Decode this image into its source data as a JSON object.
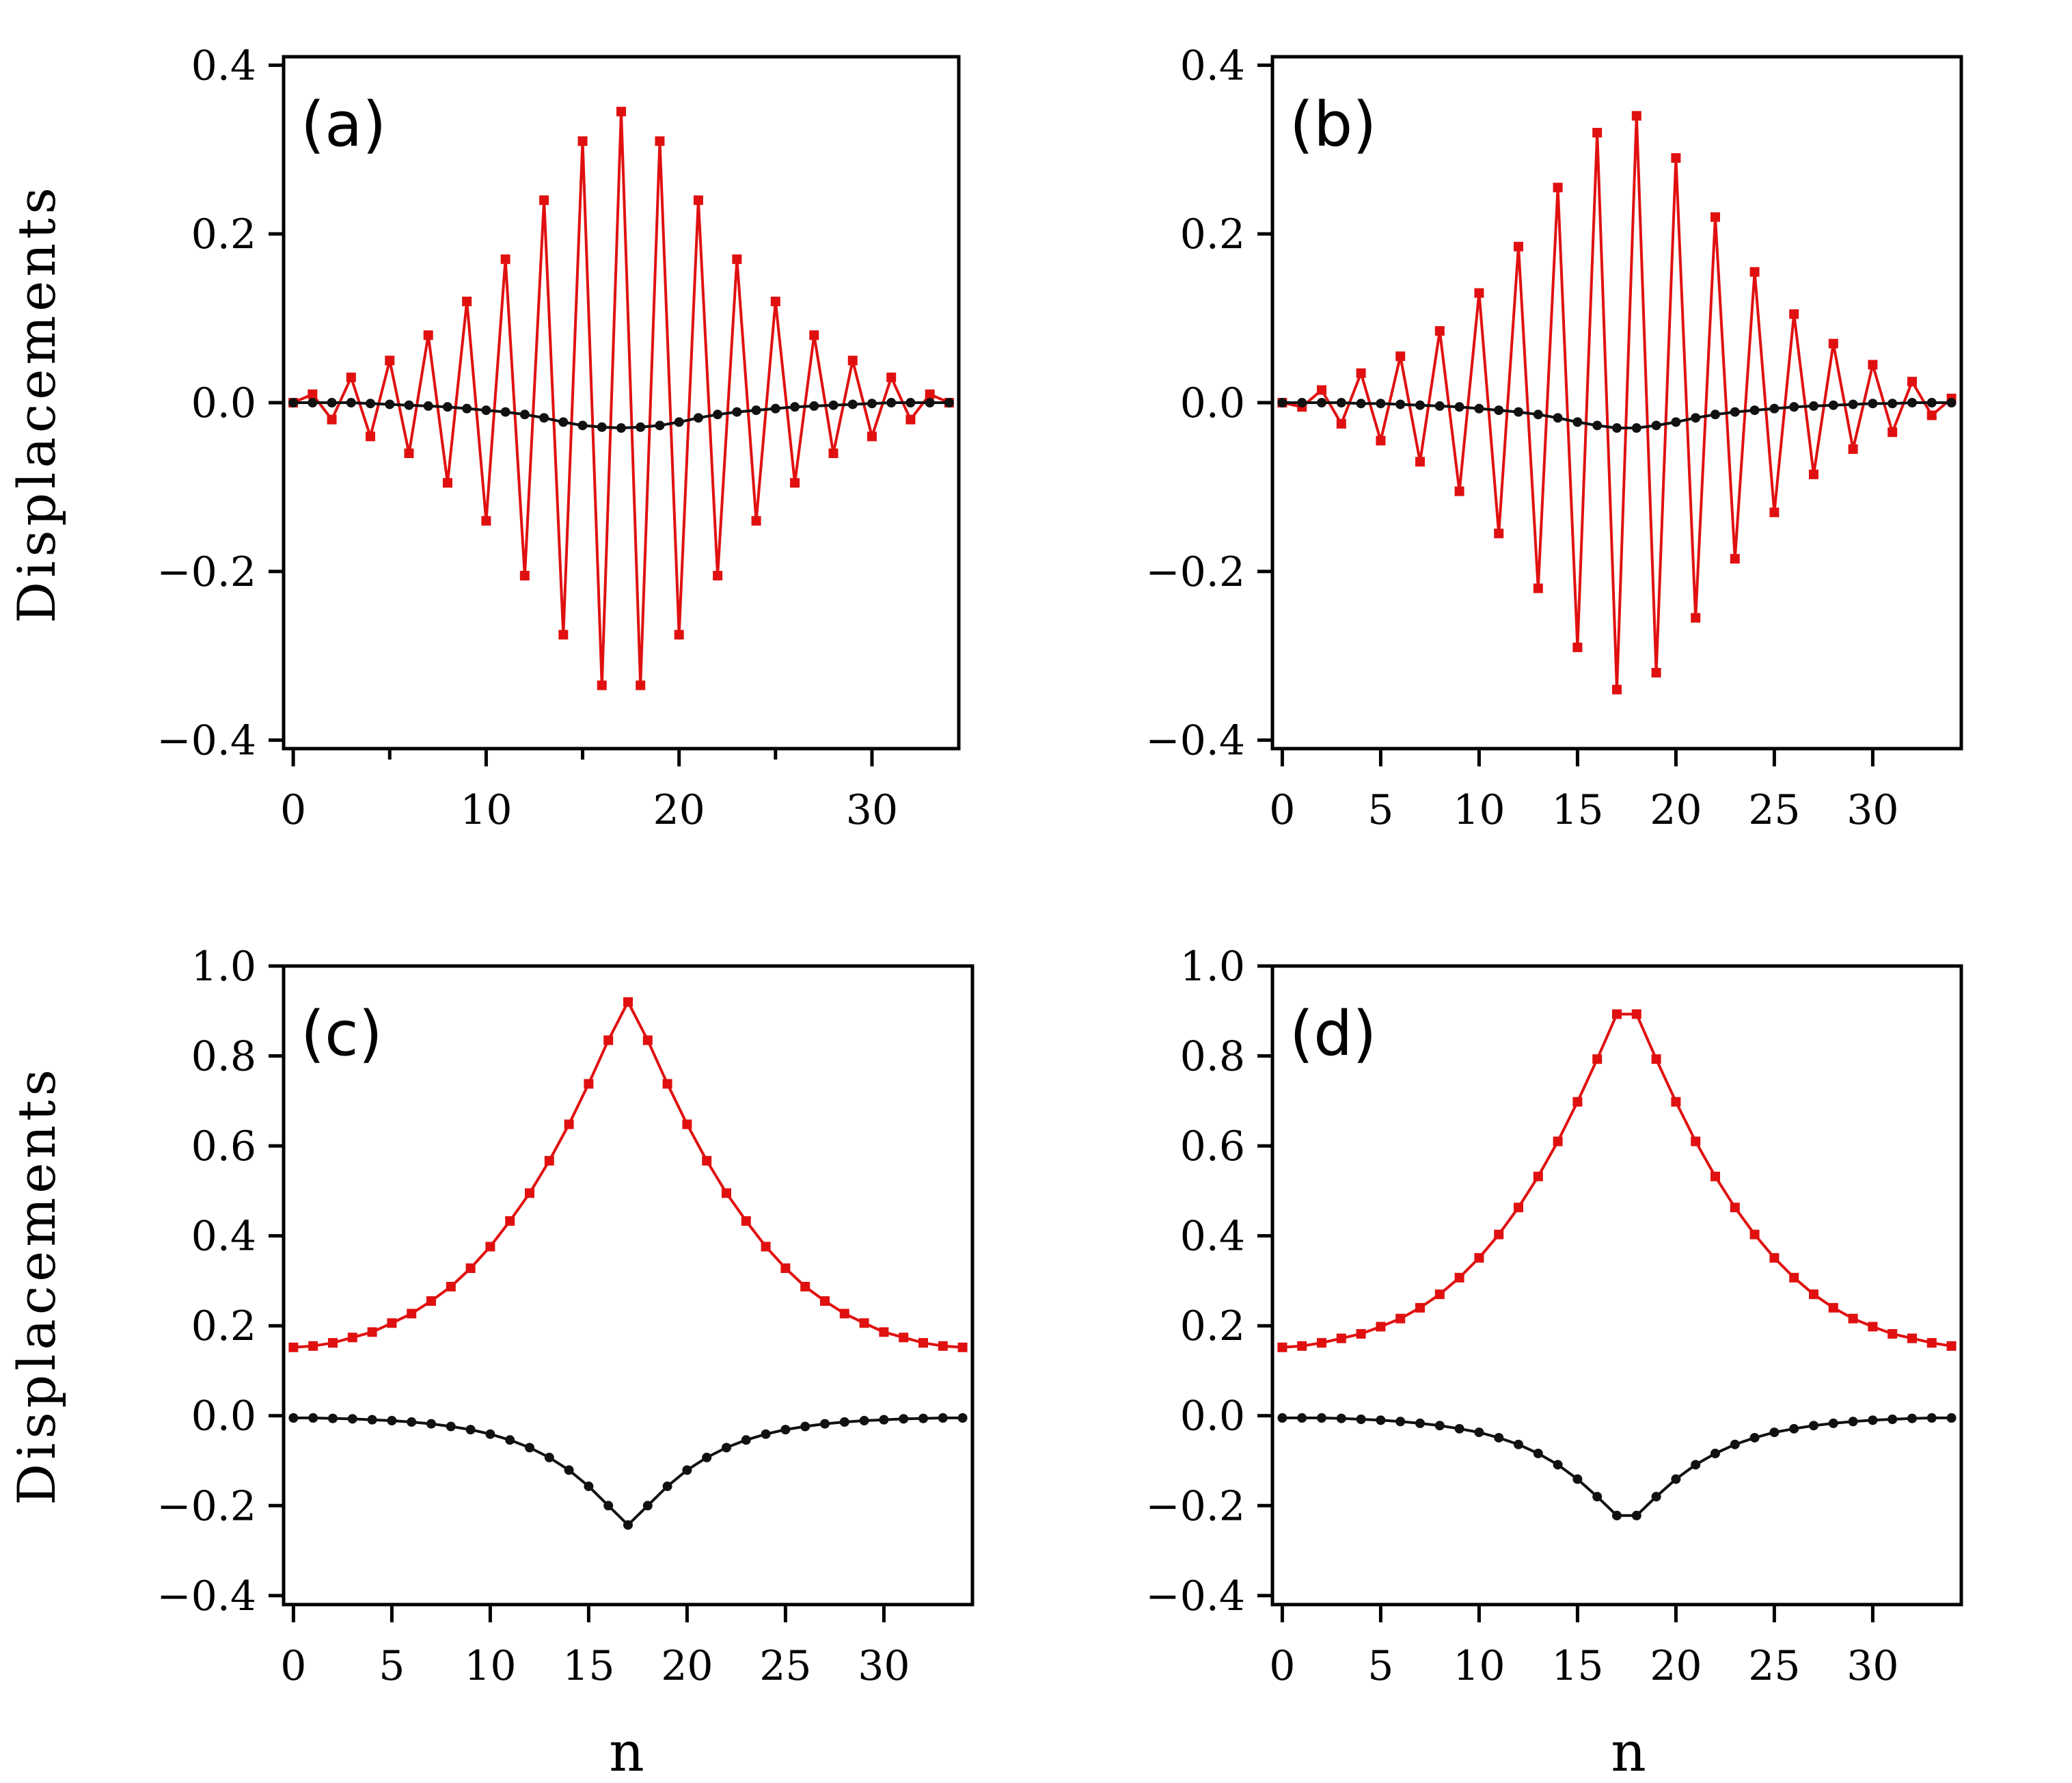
{
  "figure": {
    "ylabel_top": "Displacements",
    "ylabel_bottom": "Displacements",
    "xlabel_c": "n",
    "xlabel_d": "n"
  },
  "colors": {
    "series_red": "#e01010",
    "series_black": "#111111",
    "axis": "#000000"
  },
  "chart_data": [
    {
      "type": "line",
      "panel": "(a)",
      "ylabel": "Displacements",
      "xlabel": "",
      "xlim": [
        -0.5,
        34.5
      ],
      "ylim": [
        -0.41,
        0.41
      ],
      "xticks": [
        0,
        10,
        20,
        30
      ],
      "xticks_minor": [
        5,
        15,
        25
      ],
      "yticks": [
        -0.4,
        -0.2,
        0.0,
        0.2,
        0.4
      ],
      "yticklabels": [
        "−0.4",
        "−0.2",
        "0.0",
        "0.2",
        "0.4"
      ],
      "x": [
        0,
        1,
        2,
        3,
        4,
        5,
        6,
        7,
        8,
        9,
        10,
        11,
        12,
        13,
        14,
        15,
        16,
        17,
        18,
        19,
        20,
        21,
        22,
        23,
        24,
        25,
        26,
        27,
        28,
        29,
        30,
        31,
        32,
        33,
        34
      ],
      "series": [
        {
          "name": "red squares",
          "color": "#e01010",
          "marker": "square",
          "values": [
            0.0,
            0.01,
            -0.02,
            0.03,
            -0.04,
            0.05,
            -0.06,
            0.08,
            -0.095,
            0.12,
            -0.14,
            0.17,
            -0.205,
            0.24,
            -0.275,
            0.31,
            -0.335,
            0.345,
            -0.335,
            0.31,
            -0.275,
            0.24,
            -0.205,
            0.17,
            -0.14,
            0.12,
            -0.095,
            0.08,
            -0.06,
            0.05,
            -0.04,
            0.03,
            -0.02,
            0.01,
            0.0
          ]
        },
        {
          "name": "black circles",
          "color": "#111111",
          "marker": "circle",
          "values": [
            0.0,
            0.0,
            0.0,
            0.0,
            -0.001,
            -0.002,
            -0.003,
            -0.004,
            -0.005,
            -0.007,
            -0.009,
            -0.011,
            -0.014,
            -0.018,
            -0.023,
            -0.027,
            -0.029,
            -0.03,
            -0.029,
            -0.027,
            -0.023,
            -0.018,
            -0.014,
            -0.011,
            -0.009,
            -0.007,
            -0.005,
            -0.004,
            -0.003,
            -0.002,
            -0.001,
            0.0,
            0.0,
            0.0,
            0.0
          ]
        }
      ]
    },
    {
      "type": "line",
      "panel": "(b)",
      "ylabel": "",
      "xlabel": "",
      "xlim": [
        -0.5,
        34.5
      ],
      "ylim": [
        -0.41,
        0.41
      ],
      "xticks": [
        0,
        5,
        10,
        15,
        20,
        25,
        30
      ],
      "xticks_minor": [],
      "yticks": [
        -0.4,
        -0.2,
        0.0,
        0.2,
        0.4
      ],
      "yticklabels": [
        "−0.4",
        "−0.2",
        "0.0",
        "0.2",
        "0.4"
      ],
      "x": [
        0,
        1,
        2,
        3,
        4,
        5,
        6,
        7,
        8,
        9,
        10,
        11,
        12,
        13,
        14,
        15,
        16,
        17,
        18,
        19,
        20,
        21,
        22,
        23,
        24,
        25,
        26,
        27,
        28,
        29,
        30,
        31,
        32,
        33,
        34
      ],
      "series": [
        {
          "name": "red squares",
          "color": "#e01010",
          "marker": "square",
          "values": [
            0.0,
            -0.005,
            0.015,
            -0.025,
            0.035,
            -0.045,
            0.055,
            -0.07,
            0.085,
            -0.105,
            0.13,
            -0.155,
            0.185,
            -0.22,
            0.255,
            -0.29,
            0.32,
            -0.34,
            0.34,
            -0.32,
            0.29,
            -0.255,
            0.22,
            -0.185,
            0.155,
            -0.13,
            0.105,
            -0.085,
            0.07,
            -0.055,
            0.045,
            -0.035,
            0.025,
            -0.015,
            0.005
          ]
        },
        {
          "name": "black circles",
          "color": "#111111",
          "marker": "circle",
          "values": [
            0.0,
            0.0,
            0.0,
            0.0,
            -0.001,
            -0.001,
            -0.002,
            -0.003,
            -0.004,
            -0.005,
            -0.007,
            -0.009,
            -0.011,
            -0.014,
            -0.018,
            -0.023,
            -0.027,
            -0.03,
            -0.03,
            -0.027,
            -0.023,
            -0.018,
            -0.014,
            -0.011,
            -0.009,
            -0.007,
            -0.005,
            -0.004,
            -0.003,
            -0.002,
            -0.001,
            -0.001,
            0.0,
            0.0,
            0.0
          ]
        }
      ]
    },
    {
      "type": "line",
      "panel": "(c)",
      "ylabel": "Displacements",
      "xlabel": "n",
      "xlim": [
        -0.5,
        34.5
      ],
      "ylim": [
        -0.42,
        1.0
      ],
      "xticks": [
        0,
        5,
        10,
        15,
        20,
        25,
        30
      ],
      "xticks_minor": [],
      "yticks": [
        -0.4,
        -0.2,
        0.0,
        0.2,
        0.4,
        0.6,
        0.8,
        1.0
      ],
      "yticklabels": [
        "−0.4",
        "−0.2",
        "0.0",
        "0.2",
        "0.4",
        "0.6",
        "0.8",
        "1.0"
      ],
      "x": [
        0,
        1,
        2,
        3,
        4,
        5,
        6,
        7,
        8,
        9,
        10,
        11,
        12,
        13,
        14,
        15,
        16,
        17,
        18,
        19,
        20,
        21,
        22,
        23,
        24,
        25,
        26,
        27,
        28,
        29,
        30,
        31,
        32,
        33,
        34
      ],
      "series": [
        {
          "name": "red squares",
          "color": "#e01010",
          "marker": "square",
          "values": [
            0.152,
            0.155,
            0.162,
            0.174,
            0.186,
            0.206,
            0.227,
            0.255,
            0.287,
            0.328,
            0.376,
            0.433,
            0.495,
            0.567,
            0.648,
            0.738,
            0.835,
            0.92,
            0.835,
            0.738,
            0.648,
            0.567,
            0.495,
            0.433,
            0.376,
            0.328,
            0.287,
            0.255,
            0.227,
            0.206,
            0.186,
            0.174,
            0.162,
            0.155,
            0.152
          ]
        },
        {
          "name": "black circles",
          "color": "#111111",
          "marker": "circle",
          "values": [
            -0.005,
            -0.005,
            -0.006,
            -0.007,
            -0.009,
            -0.011,
            -0.014,
            -0.018,
            -0.024,
            -0.031,
            -0.041,
            -0.054,
            -0.071,
            -0.093,
            -0.121,
            -0.157,
            -0.2,
            -0.243,
            -0.2,
            -0.157,
            -0.121,
            -0.093,
            -0.071,
            -0.054,
            -0.041,
            -0.031,
            -0.024,
            -0.018,
            -0.014,
            -0.011,
            -0.009,
            -0.007,
            -0.006,
            -0.005,
            -0.005
          ]
        }
      ]
    },
    {
      "type": "line",
      "panel": "(d)",
      "ylabel": "",
      "xlabel": "n",
      "xlim": [
        -0.5,
        34.5
      ],
      "ylim": [
        -0.42,
        1.0
      ],
      "xticks": [
        0,
        5,
        10,
        15,
        20,
        25,
        30
      ],
      "xticks_minor": [],
      "yticks": [
        -0.4,
        -0.2,
        0.0,
        0.2,
        0.4,
        0.6,
        0.8,
        1.0
      ],
      "yticklabels": [
        "−0.4",
        "−0.2",
        "0.0",
        "0.2",
        "0.4",
        "0.6",
        "0.8",
        "1.0"
      ],
      "x": [
        0,
        1,
        2,
        3,
        4,
        5,
        6,
        7,
        8,
        9,
        10,
        11,
        12,
        13,
        14,
        15,
        16,
        17,
        18,
        19,
        20,
        21,
        22,
        23,
        24,
        25,
        26,
        27,
        28,
        29,
        30,
        31,
        32,
        33,
        34
      ],
      "series": [
        {
          "name": "red squares",
          "color": "#e01010",
          "marker": "square",
          "values": [
            0.152,
            0.155,
            0.162,
            0.172,
            0.182,
            0.198,
            0.216,
            0.24,
            0.27,
            0.307,
            0.351,
            0.403,
            0.463,
            0.532,
            0.61,
            0.698,
            0.793,
            0.893,
            0.893,
            0.793,
            0.698,
            0.61,
            0.532,
            0.463,
            0.403,
            0.351,
            0.307,
            0.27,
            0.24,
            0.216,
            0.198,
            0.182,
            0.172,
            0.162,
            0.155
          ]
        },
        {
          "name": "black circles",
          "color": "#111111",
          "marker": "circle",
          "values": [
            -0.005,
            -0.005,
            -0.005,
            -0.006,
            -0.008,
            -0.01,
            -0.013,
            -0.017,
            -0.022,
            -0.029,
            -0.037,
            -0.049,
            -0.064,
            -0.084,
            -0.109,
            -0.141,
            -0.18,
            -0.222,
            -0.222,
            -0.18,
            -0.141,
            -0.109,
            -0.084,
            -0.064,
            -0.049,
            -0.037,
            -0.029,
            -0.022,
            -0.017,
            -0.013,
            -0.01,
            -0.008,
            -0.006,
            -0.005,
            -0.005
          ]
        }
      ]
    }
  ]
}
